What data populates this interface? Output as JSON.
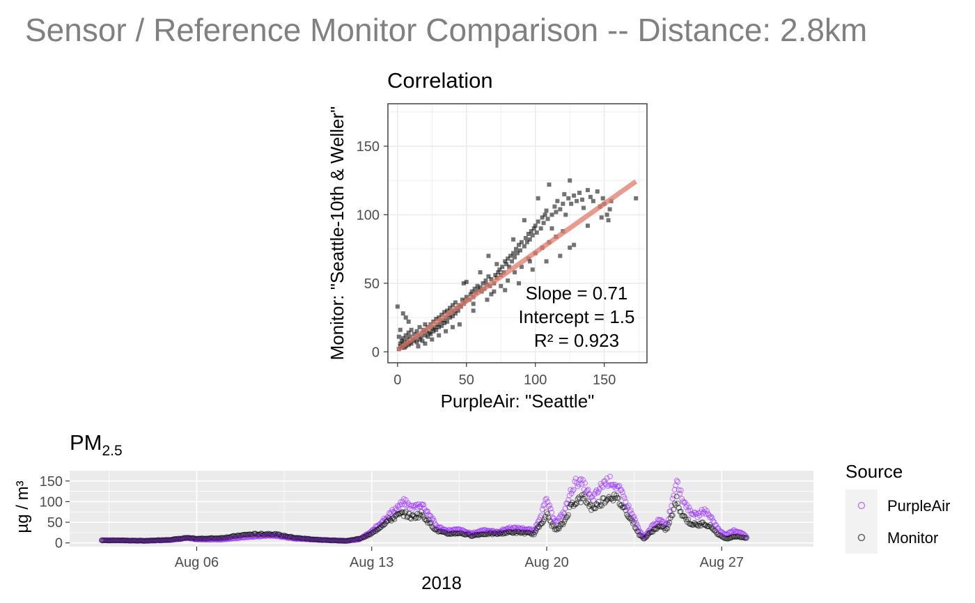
{
  "page": {
    "title": "Sensor / Reference Monitor Comparison -- Distance: 2.8km"
  },
  "chart_data": [
    {
      "type": "scatter",
      "title": "Correlation",
      "xlabel": "PurpleAir: \"Seattle\"",
      "ylabel": "Monitor: \"Seattle-10th & Weller\"",
      "xlim": [
        -7,
        181
      ],
      "ylim": [
        -8,
        181
      ],
      "x_ticks": [
        "0",
        "50",
        "100",
        "150"
      ],
      "y_ticks": [
        "0",
        "50",
        "100",
        "150"
      ],
      "grid": true,
      "point_color": "#000000",
      "fit_line_color": "#e07a6a",
      "fit": {
        "slope": 0.71,
        "intercept": 1.5,
        "r2": 0.923
      },
      "annotations": [
        "Slope = 0.71",
        "Intercept = 1.5",
        "R² = 0.923"
      ],
      "points": [
        [
          1,
          2
        ],
        [
          2,
          4
        ],
        [
          2,
          6
        ],
        [
          3,
          3
        ],
        [
          3,
          8
        ],
        [
          4,
          5
        ],
        [
          4,
          10
        ],
        [
          5,
          3
        ],
        [
          5,
          7
        ],
        [
          6,
          12
        ],
        [
          6,
          4
        ],
        [
          7,
          6
        ],
        [
          7,
          9
        ],
        [
          8,
          14
        ],
        [
          8,
          5
        ],
        [
          9,
          7
        ],
        [
          9,
          11
        ],
        [
          10,
          6
        ],
        [
          10,
          16
        ],
        [
          11,
          9
        ],
        [
          12,
          8
        ],
        [
          12,
          13
        ],
        [
          13,
          10
        ],
        [
          14,
          7
        ],
        [
          14,
          15
        ],
        [
          15,
          12
        ],
        [
          16,
          9
        ],
        [
          16,
          18
        ],
        [
          17,
          11
        ],
        [
          18,
          14
        ],
        [
          18,
          8
        ],
        [
          19,
          16
        ],
        [
          20,
          12
        ],
        [
          20,
          20
        ],
        [
          21,
          15
        ],
        [
          22,
          11
        ],
        [
          22,
          18
        ],
        [
          23,
          14
        ],
        [
          24,
          20
        ],
        [
          24,
          13
        ],
        [
          25,
          17
        ],
        [
          26,
          15
        ],
        [
          26,
          22
        ],
        [
          27,
          18
        ],
        [
          28,
          16
        ],
        [
          28,
          24
        ],
        [
          29,
          20
        ],
        [
          30,
          18
        ],
        [
          30,
          25
        ],
        [
          31,
          22
        ],
        [
          32,
          19
        ],
        [
          32,
          27
        ],
        [
          33,
          23
        ],
        [
          34,
          21
        ],
        [
          34,
          29
        ],
        [
          35,
          25
        ],
        [
          36,
          22
        ],
        [
          36,
          30
        ],
        [
          37,
          27
        ],
        [
          38,
          25
        ],
        [
          38,
          32
        ],
        [
          39,
          29
        ],
        [
          40,
          26
        ],
        [
          40,
          34
        ],
        [
          41,
          30
        ],
        [
          42,
          28
        ],
        [
          42,
          36
        ],
        [
          43,
          32
        ],
        [
          44,
          30
        ],
        [
          45,
          34
        ],
        [
          46,
          33
        ],
        [
          47,
          38
        ],
        [
          48,
          35
        ],
        [
          48,
          50
        ],
        [
          49,
          37
        ],
        [
          50,
          40
        ],
        [
          50,
          51
        ],
        [
          52,
          38
        ],
        [
          53,
          42
        ],
        [
          54,
          44
        ],
        [
          55,
          40
        ],
        [
          56,
          46
        ],
        [
          57,
          43
        ],
        [
          58,
          48
        ],
        [
          59,
          45
        ],
        [
          60,
          47
        ],
        [
          61,
          44
        ],
        [
          62,
          50
        ],
        [
          63,
          46
        ],
        [
          64,
          52
        ],
        [
          65,
          49
        ],
        [
          66,
          55
        ],
        [
          67,
          48
        ],
        [
          68,
          53
        ],
        [
          70,
          50
        ],
        [
          71,
          56
        ],
        [
          72,
          54
        ],
        [
          73,
          58
        ],
        [
          74,
          60
        ],
        [
          75,
          56
        ],
        [
          76,
          62
        ],
        [
          77,
          58
        ],
        [
          78,
          66
        ],
        [
          79,
          64
        ],
        [
          80,
          68
        ],
        [
          81,
          62
        ],
        [
          82,
          70
        ],
        [
          83,
          66
        ],
        [
          84,
          72
        ],
        [
          85,
          69
        ],
        [
          86,
          75
        ],
        [
          87,
          72
        ],
        [
          88,
          78
        ],
        [
          89,
          74
        ],
        [
          90,
          80
        ],
        [
          92,
          77
        ],
        [
          93,
          83
        ],
        [
          94,
          80
        ],
        [
          95,
          86
        ],
        [
          96,
          82
        ],
        [
          97,
          88
        ],
        [
          98,
          85
        ],
        [
          99,
          90
        ],
        [
          100,
          92
        ],
        [
          101,
          87
        ],
        [
          102,
          95
        ],
        [
          104,
          90
        ],
        [
          105,
          98
        ],
        [
          106,
          94
        ],
        [
          107,
          100
        ],
        [
          108,
          103
        ],
        [
          109,
          97
        ],
        [
          110,
          122
        ],
        [
          112,
          100
        ],
        [
          114,
          106
        ],
        [
          115,
          102
        ],
        [
          116,
          110
        ],
        [
          118,
          104
        ],
        [
          120,
          108
        ],
        [
          121,
          115
        ],
        [
          122,
          100
        ],
        [
          124,
          112
        ],
        [
          125,
          125
        ],
        [
          126,
          108
        ],
        [
          128,
          114
        ],
        [
          130,
          110
        ],
        [
          132,
          116
        ],
        [
          134,
          111
        ],
        [
          135,
          105
        ],
        [
          138,
          118
        ],
        [
          140,
          113
        ],
        [
          142,
          110
        ],
        [
          145,
          117
        ],
        [
          147,
          106
        ],
        [
          149,
          112
        ],
        [
          150,
          108
        ],
        [
          152,
          100
        ],
        [
          153,
          96
        ],
        [
          154,
          104
        ],
        [
          155,
          110
        ],
        [
          173,
          112
        ],
        [
          0,
          33
        ],
        [
          4,
          28
        ],
        [
          6,
          25
        ],
        [
          8,
          22
        ],
        [
          2,
          16
        ],
        [
          1,
          11
        ],
        [
          15,
          4
        ],
        [
          20,
          6
        ],
        [
          25,
          9
        ],
        [
          30,
          12
        ],
        [
          35,
          15
        ],
        [
          40,
          18
        ],
        [
          45,
          20
        ],
        [
          55,
          30
        ],
        [
          65,
          38
        ],
        [
          70,
          44
        ],
        [
          75,
          48
        ],
        [
          80,
          52
        ],
        [
          85,
          58
        ],
        [
          90,
          62
        ],
        [
          95,
          68
        ],
        [
          100,
          72
        ],
        [
          105,
          76
        ],
        [
          110,
          80
        ],
        [
          115,
          84
        ],
        [
          120,
          88
        ],
        [
          125,
          76
        ],
        [
          60,
          58
        ],
        [
          55,
          35
        ],
        [
          68,
          42
        ],
        [
          78,
          45
        ],
        [
          88,
          50
        ],
        [
          98,
          60
        ],
        [
          108,
          66
        ],
        [
          118,
          70
        ],
        [
          128,
          78
        ],
        [
          138,
          92
        ],
        [
          148,
          98
        ],
        [
          66,
          70
        ],
        [
          72,
          64
        ],
        [
          84,
          82
        ],
        [
          92,
          96
        ],
        [
          102,
          112
        ],
        [
          112,
          90
        ],
        [
          96,
          66
        ]
      ]
    },
    {
      "type": "scatter",
      "title": "PM",
      "title_subscript": "2.5",
      "xlabel": "2018",
      "ylabel": "µg / m³",
      "ylim": [
        -9,
        175
      ],
      "y_ticks": [
        "0",
        "50",
        "100",
        "150"
      ],
      "x_ticks": [
        "Aug 06",
        "Aug 13",
        "Aug 20",
        "Aug 27"
      ],
      "grid": true,
      "legend_title": "Source",
      "legend_position": "right",
      "series": [
        {
          "name": "PurpleAir",
          "color": "#9b30ff"
        },
        {
          "name": "Monitor",
          "color": "#000000"
        }
      ],
      "time_start": "Aug 02",
      "time_end": "Aug 28",
      "profile_purpleair": [
        [
          2.2,
          7
        ],
        [
          3,
          6
        ],
        [
          4,
          5
        ],
        [
          5,
          7
        ],
        [
          5.6,
          12
        ],
        [
          6,
          8
        ],
        [
          7,
          8
        ],
        [
          8,
          14
        ],
        [
          9,
          18
        ],
        [
          10,
          10
        ],
        [
          11,
          7
        ],
        [
          12,
          5
        ],
        [
          12.5,
          8
        ],
        [
          13,
          28
        ],
        [
          13.5,
          58
        ],
        [
          14,
          85
        ],
        [
          14.3,
          100
        ],
        [
          14.6,
          85
        ],
        [
          15,
          95
        ],
        [
          15.3,
          70
        ],
        [
          15.6,
          40
        ],
        [
          16,
          30
        ],
        [
          16.5,
          32
        ],
        [
          17,
          22
        ],
        [
          17.5,
          32
        ],
        [
          18,
          26
        ],
        [
          18.5,
          36
        ],
        [
          19,
          35
        ],
        [
          19.5,
          30
        ],
        [
          19.8,
          75
        ],
        [
          20,
          105
        ],
        [
          20.2,
          70
        ],
        [
          20.4,
          50
        ],
        [
          20.7,
          75
        ],
        [
          21,
          130
        ],
        [
          21.2,
          150
        ],
        [
          21.5,
          140
        ],
        [
          21.8,
          105
        ],
        [
          22,
          120
        ],
        [
          22.3,
          148
        ],
        [
          22.6,
          150
        ],
        [
          22.9,
          130
        ],
        [
          23.2,
          95
        ],
        [
          23.5,
          60
        ],
        [
          23.7,
          30
        ],
        [
          23.9,
          12
        ],
        [
          24.2,
          40
        ],
        [
          24.5,
          55
        ],
        [
          24.8,
          45
        ],
        [
          25,
          95
        ],
        [
          25.2,
          160
        ],
        [
          25.4,
          110
        ],
        [
          25.7,
          80
        ],
        [
          26,
          65
        ],
        [
          26.3,
          80
        ],
        [
          26.6,
          60
        ],
        [
          26.9,
          30
        ],
        [
          27.2,
          20
        ],
        [
          27.5,
          30
        ],
        [
          27.8,
          25
        ],
        [
          28,
          14
        ]
      ],
      "profile_monitor": [
        [
          2.2,
          6
        ],
        [
          3,
          6
        ],
        [
          4,
          5
        ],
        [
          5,
          8
        ],
        [
          5.6,
          12
        ],
        [
          6,
          10
        ],
        [
          7,
          12
        ],
        [
          8,
          20
        ],
        [
          9,
          22
        ],
        [
          10,
          12
        ],
        [
          11,
          7
        ],
        [
          12,
          5
        ],
        [
          12.5,
          10
        ],
        [
          13,
          22
        ],
        [
          13.5,
          48
        ],
        [
          14,
          65
        ],
        [
          14.3,
          72
        ],
        [
          14.6,
          62
        ],
        [
          15,
          70
        ],
        [
          15.3,
          50
        ],
        [
          15.6,
          30
        ],
        [
          16,
          22
        ],
        [
          16.5,
          24
        ],
        [
          17,
          18
        ],
        [
          17.5,
          22
        ],
        [
          18,
          22
        ],
        [
          18.5,
          26
        ],
        [
          19,
          25
        ],
        [
          19.5,
          22
        ],
        [
          19.8,
          50
        ],
        [
          20,
          70
        ],
        [
          20.2,
          45
        ],
        [
          20.4,
          30
        ],
        [
          20.7,
          50
        ],
        [
          21,
          95
        ],
        [
          21.2,
          102
        ],
        [
          21.5,
          110
        ],
        [
          21.8,
          85
        ],
        [
          22,
          90
        ],
        [
          22.3,
          105
        ],
        [
          22.6,
          115
        ],
        [
          22.9,
          100
        ],
        [
          23.2,
          75
        ],
        [
          23.5,
          45
        ],
        [
          23.7,
          20
        ],
        [
          23.9,
          10
        ],
        [
          24.2,
          28
        ],
        [
          24.5,
          40
        ],
        [
          24.8,
          32
        ],
        [
          25,
          65
        ],
        [
          25.2,
          105
        ],
        [
          25.4,
          70
        ],
        [
          25.7,
          50
        ],
        [
          26,
          42
        ],
        [
          26.3,
          48
        ],
        [
          26.6,
          38
        ],
        [
          26.9,
          18
        ],
        [
          27.2,
          10
        ],
        [
          27.5,
          16
        ],
        [
          27.8,
          14
        ],
        [
          28,
          12
        ]
      ]
    }
  ]
}
